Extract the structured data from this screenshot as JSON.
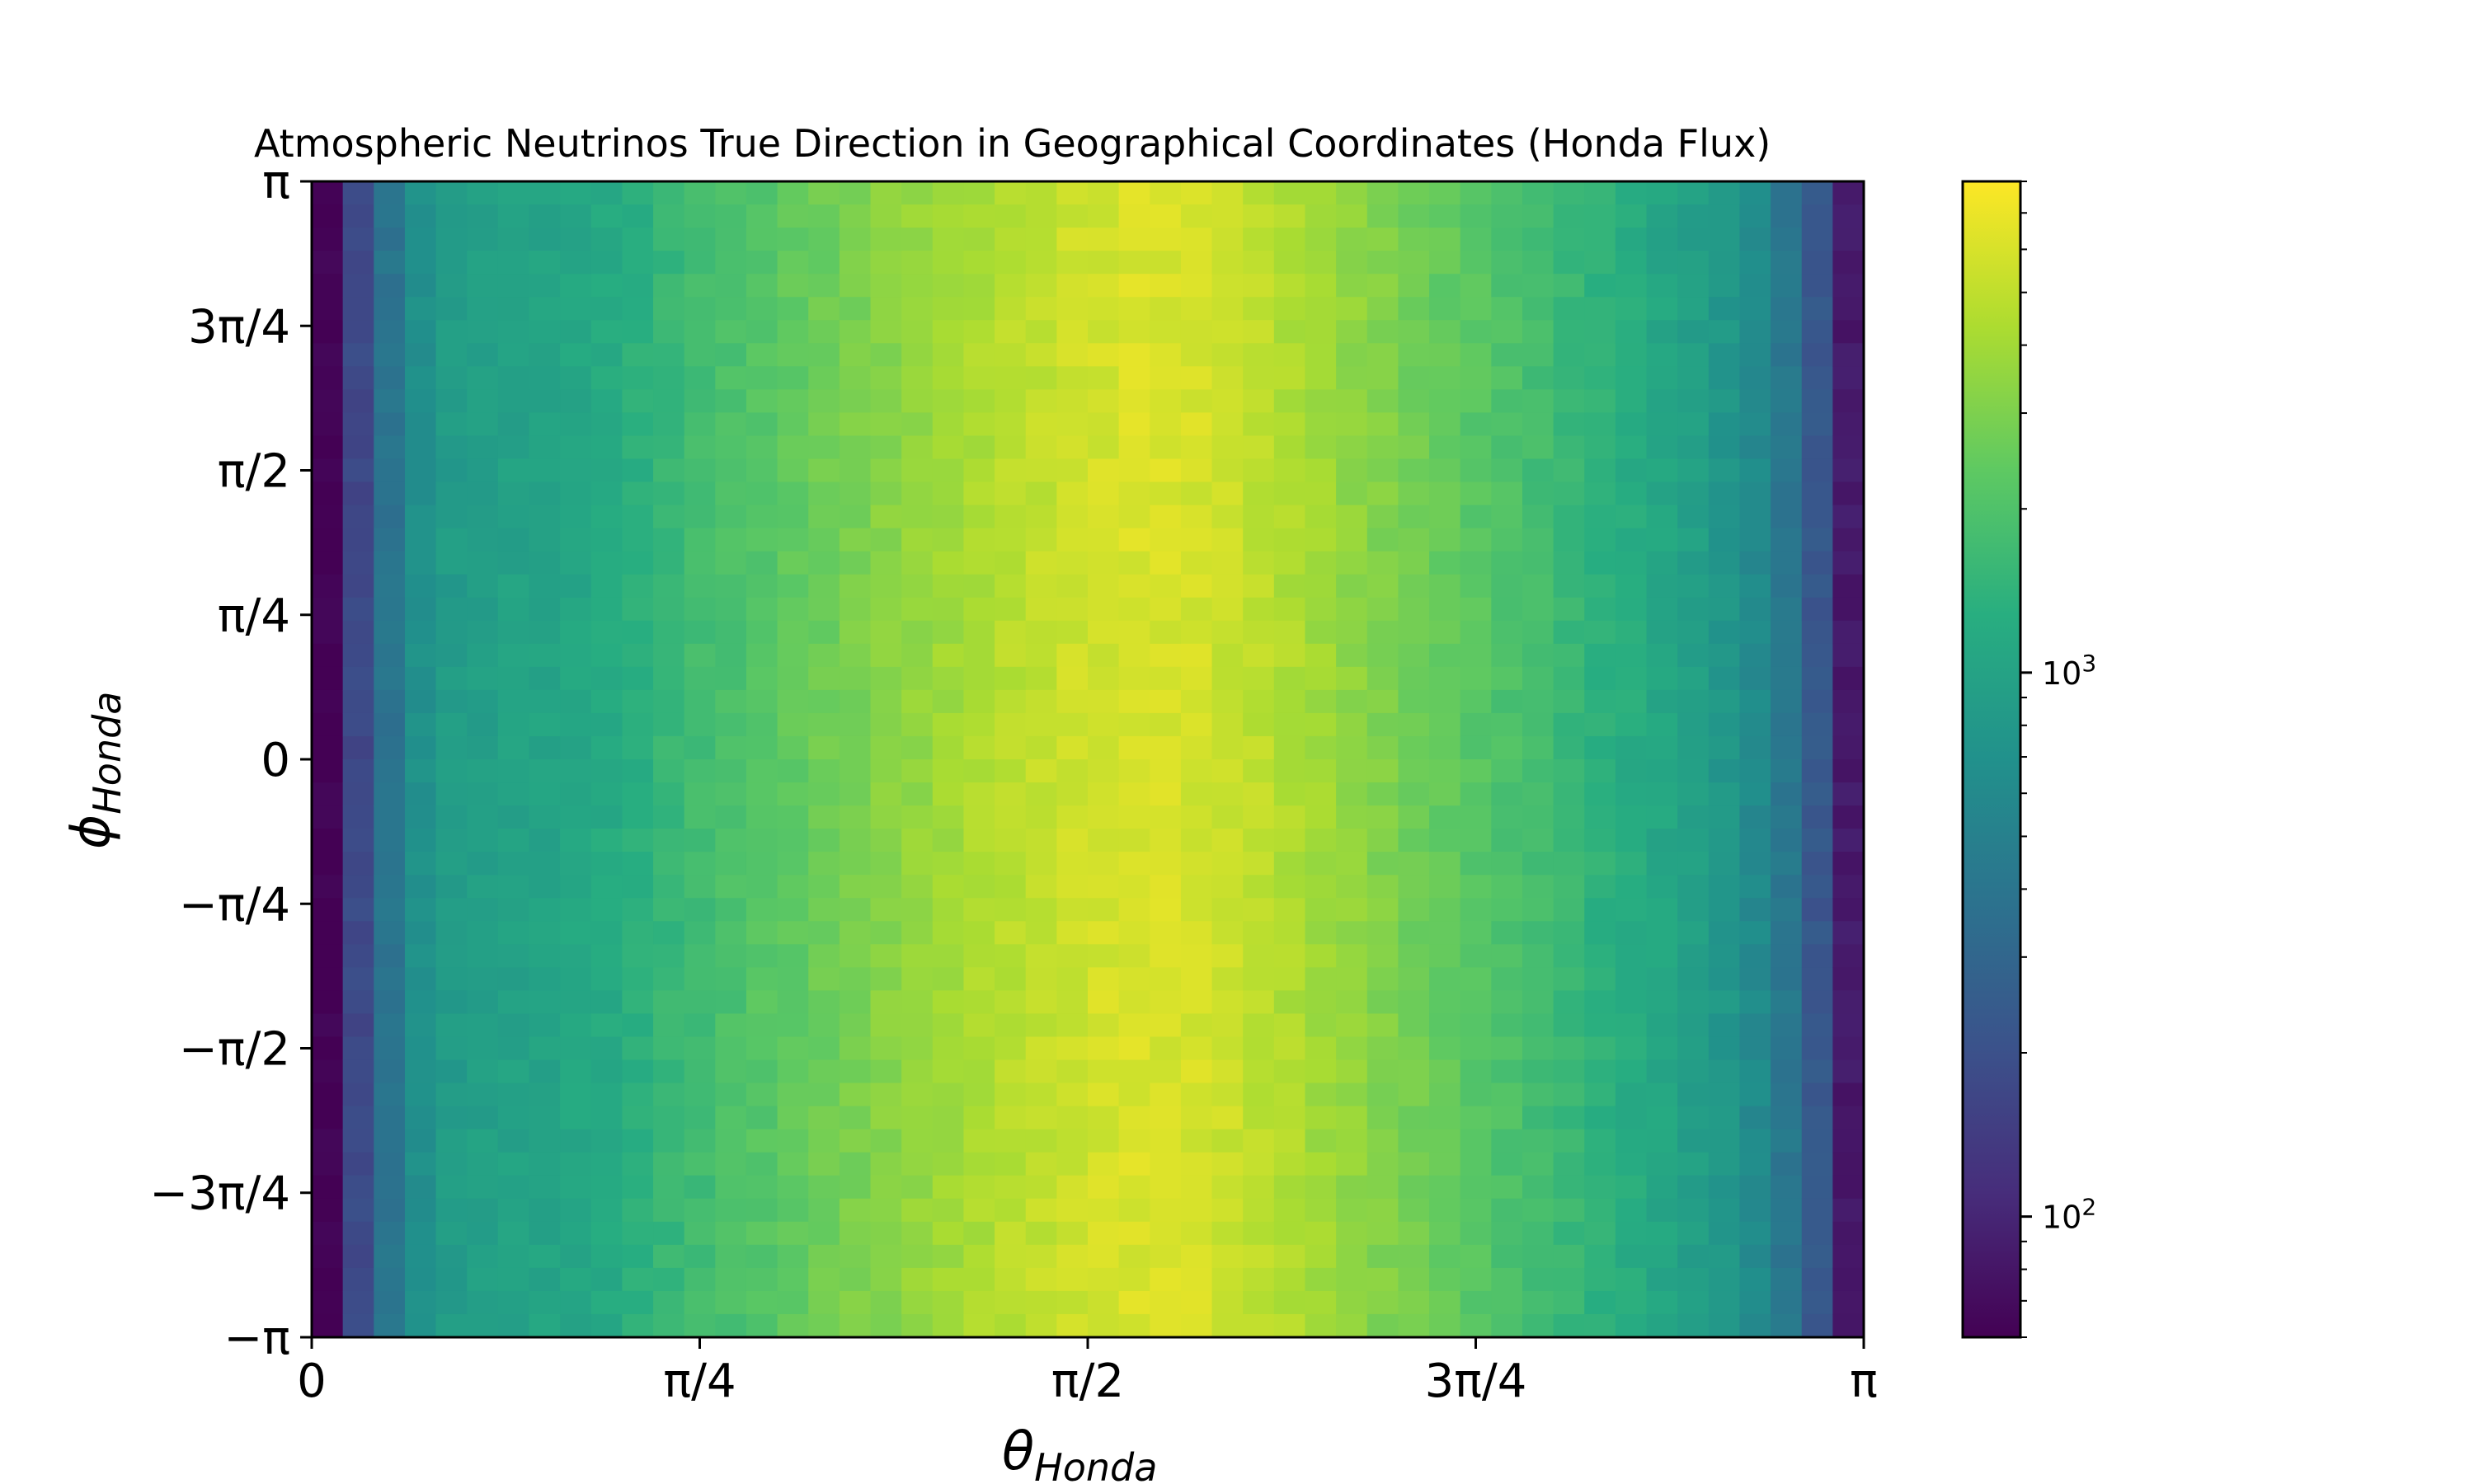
{
  "chart_data": {
    "type": "heatmap",
    "title": "Atmospheric Neutrinos True Direction in Geographical Coordinates (Honda Flux)",
    "xlabel": {
      "base": "θ",
      "sub": "Honda"
    },
    "ylabel": {
      "base": "ϕ",
      "sub": "Honda"
    },
    "x_range": [
      0,
      3.14159265
    ],
    "y_range": [
      -3.14159265,
      3.14159265
    ],
    "x_ticks": [
      {
        "value": 0,
        "label": "0"
      },
      {
        "value": 0.785398,
        "label": "π/4"
      },
      {
        "value": 1.570796,
        "label": "π/2"
      },
      {
        "value": 2.356194,
        "label": "3π/4"
      },
      {
        "value": 3.141593,
        "label": "π"
      }
    ],
    "y_ticks": [
      {
        "value": -3.141593,
        "label": "−π"
      },
      {
        "value": -2.356194,
        "label": "−3π/4"
      },
      {
        "value": -1.570796,
        "label": "−π/2"
      },
      {
        "value": -0.785398,
        "label": "−π/4"
      },
      {
        "value": 0,
        "label": "0"
      },
      {
        "value": 0.785398,
        "label": "π/4"
      },
      {
        "value": 1.570796,
        "label": "π/2"
      },
      {
        "value": 2.356194,
        "label": "3π/4"
      },
      {
        "value": 3.141593,
        "label": "π"
      }
    ],
    "bins": {
      "x": 50,
      "y": 50
    },
    "column_profile_counts": [
      60,
      180,
      400,
      700,
      880,
      950,
      1000,
      1050,
      1100,
      1200,
      1350,
      1550,
      1750,
      1950,
      2200,
      2450,
      2700,
      3000,
      3300,
      3650,
      4000,
      4400,
      4800,
      5200,
      5600,
      5900,
      6100,
      6100,
      5900,
      5500,
      5000,
      4500,
      4000,
      3550,
      3150,
      2800,
      2500,
      2250,
      2000,
      1800,
      1600,
      1400,
      1250,
      1100,
      950,
      800,
      620,
      420,
      230,
      85
    ],
    "colorbar": {
      "scale": "log",
      "min": 60,
      "max": 8000,
      "colormap": "viridis",
      "ticks": [
        {
          "value": 100,
          "label": "10",
          "exp": "2"
        },
        {
          "value": 1000,
          "label": "10",
          "exp": "3"
        }
      ]
    }
  }
}
